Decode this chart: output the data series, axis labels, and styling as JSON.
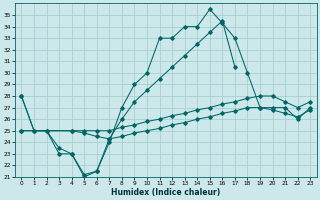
{
  "xlabel": "Humidex (Indice chaleur)",
  "xlim": [
    -0.5,
    23.5
  ],
  "ylim": [
    21,
    36
  ],
  "xticks": [
    0,
    1,
    2,
    3,
    4,
    5,
    6,
    7,
    8,
    9,
    10,
    11,
    12,
    13,
    14,
    15,
    16,
    17,
    18,
    19,
    20,
    21,
    22,
    23
  ],
  "yticks": [
    21,
    22,
    23,
    24,
    25,
    26,
    27,
    28,
    29,
    30,
    31,
    32,
    33,
    34,
    35
  ],
  "bg_color": "#cce8ea",
  "grid_color": "#aacfd2",
  "line_color": "#006666",
  "line1_x": [
    0,
    1,
    2,
    3,
    4,
    5,
    6,
    7,
    8,
    9,
    10,
    11,
    12,
    13,
    14,
    15,
    16,
    17,
    18,
    19,
    20,
    21,
    22,
    23
  ],
  "line1_y": [
    28,
    25,
    25,
    23,
    23,
    21,
    21.5,
    24,
    27,
    29,
    30,
    33,
    33,
    34,
    34,
    35.5,
    34.3,
    33,
    30,
    27,
    27,
    27,
    26,
    27
  ],
  "line2_x": [
    0,
    1,
    2,
    3,
    4,
    5,
    6,
    7,
    8,
    9,
    10,
    11,
    12,
    13,
    14,
    15,
    16,
    17
  ],
  "line2_y": [
    28,
    25,
    25,
    23.5,
    23,
    21.2,
    21.5,
    24.3,
    26,
    27.5,
    28.5,
    29.5,
    30.5,
    31.5,
    32.5,
    33.5,
    34.5,
    30.5
  ],
  "line3_x": [
    0,
    4,
    5,
    6,
    7,
    8,
    9,
    10,
    11,
    12,
    13,
    14,
    15,
    16,
    17,
    18,
    19,
    20,
    21,
    22,
    23
  ],
  "line3_y": [
    25,
    25,
    25,
    25,
    25,
    25.3,
    25.5,
    25.8,
    26.0,
    26.3,
    26.5,
    26.8,
    27.0,
    27.3,
    27.5,
    27.8,
    28.0,
    28.0,
    27.5,
    27.0,
    27.5
  ],
  "line4_x": [
    0,
    4,
    5,
    6,
    7,
    8,
    9,
    10,
    11,
    12,
    13,
    14,
    15,
    16,
    17,
    18,
    19,
    20,
    21,
    22,
    23
  ],
  "line4_y": [
    25,
    25,
    24.8,
    24.5,
    24.3,
    24.5,
    24.8,
    25.0,
    25.2,
    25.5,
    25.7,
    26.0,
    26.2,
    26.5,
    26.7,
    27.0,
    27.0,
    26.8,
    26.5,
    26.2,
    26.8
  ]
}
